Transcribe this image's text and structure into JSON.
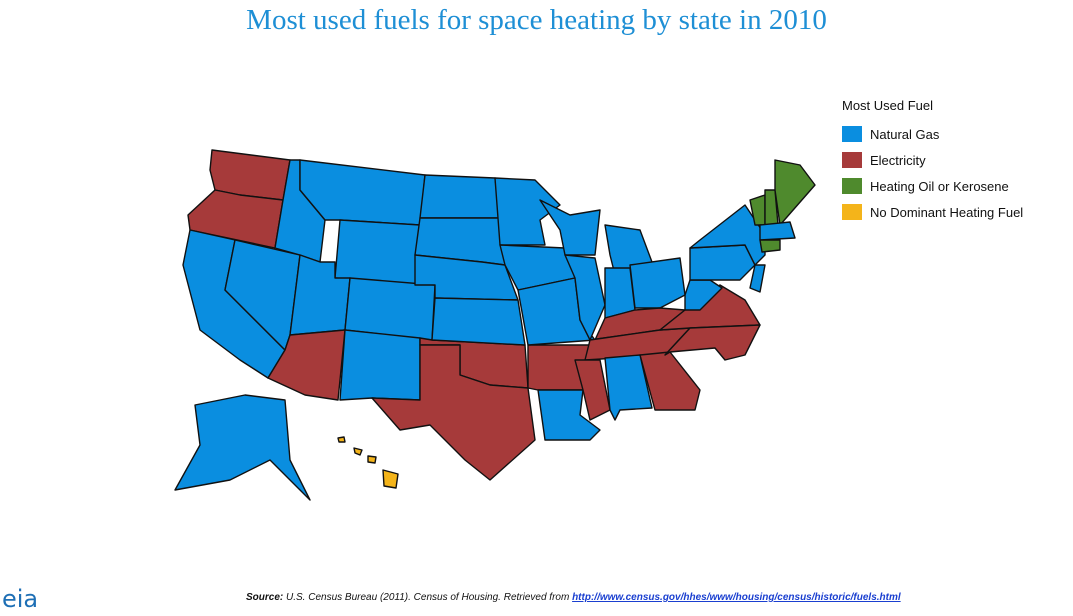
{
  "title": "Most used fuels for space heating by state in 2010",
  "legend": {
    "title": "Most Used Fuel",
    "items": [
      {
        "label": "Natural Gas",
        "color": "#0a8ee0"
      },
      {
        "label": "Electricity",
        "color": "#a63a3a"
      },
      {
        "label": "Heating Oil or Kerosene",
        "color": "#4f8a2d"
      },
      {
        "label": "No Dominant Heating Fuel",
        "color": "#f4b41a"
      }
    ]
  },
  "state_fuels": [
    1,
    1,
    0,
    0,
    0,
    0,
    0,
    0,
    1,
    0,
    0,
    0,
    0,
    0,
    1,
    0,
    0,
    0,
    1,
    1,
    0,
    0,
    0,
    0,
    0,
    0,
    1,
    1,
    0,
    1,
    1,
    1,
    1,
    0,
    0,
    0,
    0,
    0,
    2,
    2,
    2,
    0,
    2,
    0,
    3
  ],
  "source": {
    "label": "Source:",
    "text": "U.S. Census Bureau (2011).  Census of Housing. Retrieved from",
    "link": "http://www.census.gov/hhes/www/housing/census/historic/fuels.html"
  },
  "logo": "eia"
}
